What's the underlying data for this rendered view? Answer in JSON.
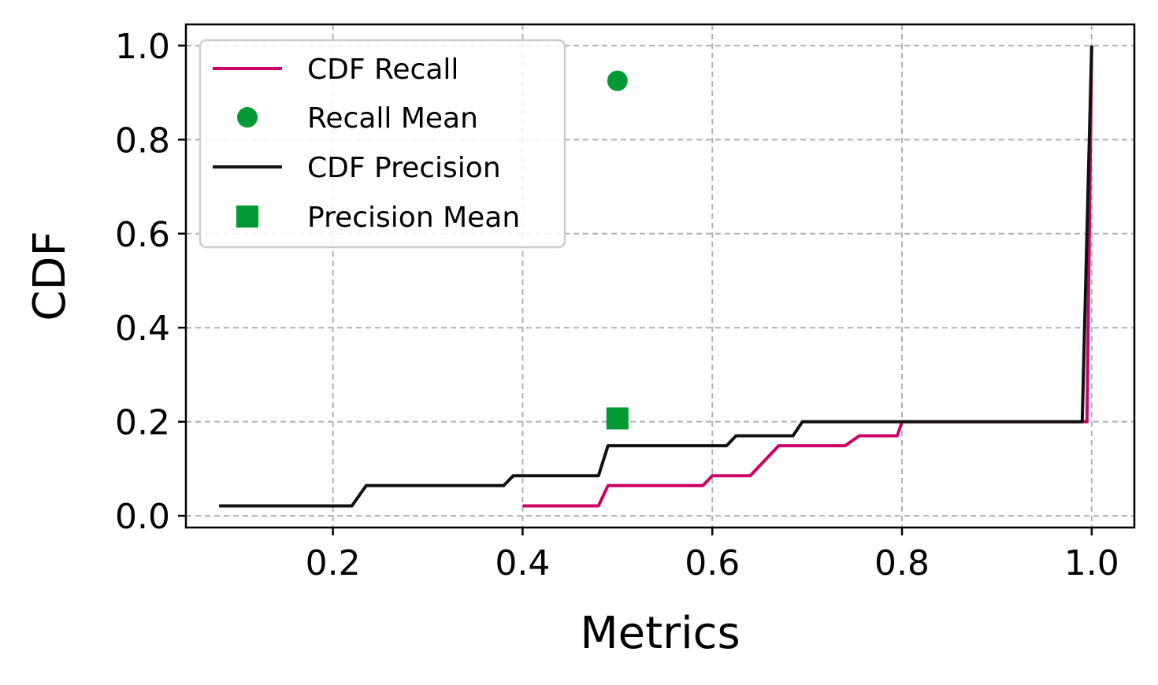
{
  "chart_data": {
    "type": "line",
    "xlabel": "Metrics",
    "ylabel": "CDF",
    "xlim": [
      0.045,
      1.045
    ],
    "ylim": [
      -0.025,
      1.045
    ],
    "xticks": [
      0.2,
      0.4,
      0.6,
      0.8,
      1.0
    ],
    "xtick_labels": [
      "0.2",
      "0.4",
      "0.6",
      "0.8",
      "1.0"
    ],
    "yticks": [
      0.0,
      0.2,
      0.4,
      0.6,
      0.8,
      1.0
    ],
    "ytick_labels": [
      "0.0",
      "0.2",
      "0.4",
      "0.6",
      "0.8",
      "1.0"
    ],
    "grid": true,
    "legend_position": "top-left",
    "series": [
      {
        "name": "CDF Recall",
        "kind": "line",
        "color": "#cc0066",
        "points": [
          [
            0.4,
            0.021
          ],
          [
            0.48,
            0.021
          ],
          [
            0.49,
            0.064
          ],
          [
            0.59,
            0.064
          ],
          [
            0.6,
            0.085
          ],
          [
            0.64,
            0.085
          ],
          [
            0.67,
            0.149
          ],
          [
            0.74,
            0.149
          ],
          [
            0.755,
            0.17
          ],
          [
            0.795,
            0.17
          ],
          [
            0.8,
            0.2
          ],
          [
            0.98,
            0.2
          ],
          [
            0.995,
            0.2
          ],
          [
            1.0,
            1.0
          ]
        ]
      },
      {
        "name": "Recall Mean",
        "kind": "marker",
        "marker": "circle",
        "color": "#009933",
        "x": 0.5,
        "y": 0.925
      },
      {
        "name": "CDF Precision",
        "kind": "line",
        "color": "#111111",
        "points": [
          [
            0.08,
            0.021
          ],
          [
            0.22,
            0.021
          ],
          [
            0.235,
            0.064
          ],
          [
            0.38,
            0.064
          ],
          [
            0.39,
            0.085
          ],
          [
            0.48,
            0.085
          ],
          [
            0.49,
            0.149
          ],
          [
            0.615,
            0.149
          ],
          [
            0.625,
            0.17
          ],
          [
            0.685,
            0.17
          ],
          [
            0.695,
            0.2
          ],
          [
            0.99,
            0.2
          ],
          [
            1.0,
            1.0
          ]
        ]
      },
      {
        "name": "Precision Mean",
        "kind": "marker",
        "marker": "square",
        "color": "#009933",
        "x": 0.5,
        "y": 0.207
      }
    ]
  }
}
